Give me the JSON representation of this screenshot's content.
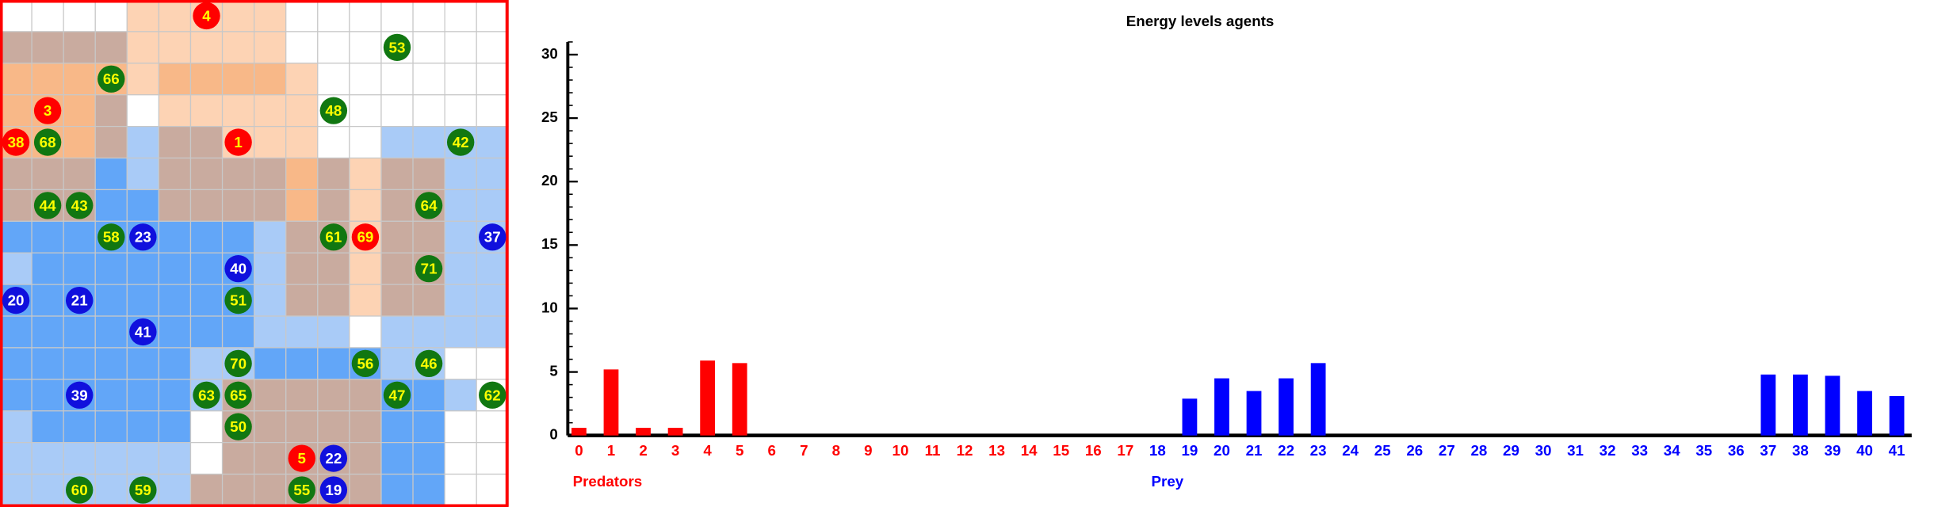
{
  "grid": {
    "agents": [
      {
        "label": "4",
        "color": "#ff0000"
      },
      {
        "label": "53",
        "color": "#117711"
      },
      {
        "label": "66",
        "color": "#117711"
      },
      {
        "label": "3",
        "color": "#ff0000"
      },
      {
        "label": "48",
        "color": "#117711"
      },
      {
        "label": "38",
        "color": "#ff0000"
      },
      {
        "label": "68",
        "color": "#117711"
      },
      {
        "label": "1",
        "color": "#ff0000"
      },
      {
        "label": "42",
        "color": "#117711"
      },
      {
        "label": "44",
        "color": "#117711"
      },
      {
        "label": "43",
        "color": "#117711"
      },
      {
        "label": "64",
        "color": "#117711"
      },
      {
        "label": "58",
        "color": "#117711"
      },
      {
        "label": "23",
        "color": "#1010dd"
      },
      {
        "label": "61",
        "color": "#117711"
      },
      {
        "label": "69",
        "color": "#ff0000"
      },
      {
        "label": "37",
        "color": "#1010dd"
      },
      {
        "label": "40",
        "color": "#1010dd"
      },
      {
        "label": "71",
        "color": "#117711"
      },
      {
        "label": "20",
        "color": "#1010dd"
      },
      {
        "label": "21",
        "color": "#1010dd"
      },
      {
        "label": "51",
        "color": "#117711"
      },
      {
        "label": "41",
        "color": "#1010dd"
      },
      {
        "label": "70",
        "color": "#117711"
      },
      {
        "label": "56",
        "color": "#117711"
      },
      {
        "label": "46",
        "color": "#117711"
      },
      {
        "label": "39",
        "color": "#1010dd"
      },
      {
        "label": "63",
        "color": "#117711"
      },
      {
        "label": "65",
        "color": "#117711"
      },
      {
        "label": "47",
        "color": "#117711"
      },
      {
        "label": "62",
        "color": "#117711"
      },
      {
        "label": "50",
        "color": "#117711"
      },
      {
        "label": "5",
        "color": "#ff0000"
      },
      {
        "label": "22",
        "color": "#1010dd"
      },
      {
        "label": "60",
        "color": "#117711"
      },
      {
        "label": "59",
        "color": "#117711"
      },
      {
        "label": "55",
        "color": "#117711"
      },
      {
        "label": "19",
        "color": "#1010dd"
      }
    ]
  },
  "chart_data": {
    "type": "bar",
    "title": "Energy levels agents",
    "categories": [
      "0",
      "1",
      "2",
      "3",
      "4",
      "5",
      "6",
      "7",
      "8",
      "9",
      "10",
      "11",
      "12",
      "13",
      "14",
      "15",
      "16",
      "17",
      "18",
      "19",
      "20",
      "21",
      "22",
      "23",
      "24",
      "25",
      "26",
      "27",
      "28",
      "29",
      "30",
      "31",
      "32",
      "33",
      "34",
      "35",
      "36",
      "37",
      "38",
      "39",
      "40",
      "41"
    ],
    "series": [
      {
        "name": "Predators",
        "color": "#ff0000",
        "values": [
          0.6,
          5.2,
          0.6,
          0.6,
          5.9,
          5.7,
          0,
          0,
          0,
          0,
          0,
          0,
          0,
          0,
          0,
          0,
          0,
          0,
          null,
          null,
          null,
          null,
          null,
          null,
          null,
          null,
          null,
          null,
          null,
          null,
          null,
          null,
          null,
          null,
          null,
          null,
          null,
          null,
          null,
          null,
          null,
          null
        ]
      },
      {
        "name": "Prey",
        "color": "#0000ff",
        "values": [
          null,
          null,
          null,
          null,
          null,
          null,
          null,
          null,
          null,
          null,
          null,
          null,
          null,
          null,
          null,
          null,
          null,
          null,
          0,
          2.9,
          4.5,
          3.5,
          4.5,
          5.7,
          0,
          0,
          0,
          0,
          0,
          0,
          0,
          0,
          0,
          0,
          0,
          0,
          0,
          4.8,
          4.8,
          4.7,
          3.5,
          3.1
        ]
      }
    ],
    "ylim": [
      0,
      31
    ],
    "yticks": [
      0,
      5,
      10,
      15,
      20,
      25,
      30
    ],
    "grid": false
  }
}
